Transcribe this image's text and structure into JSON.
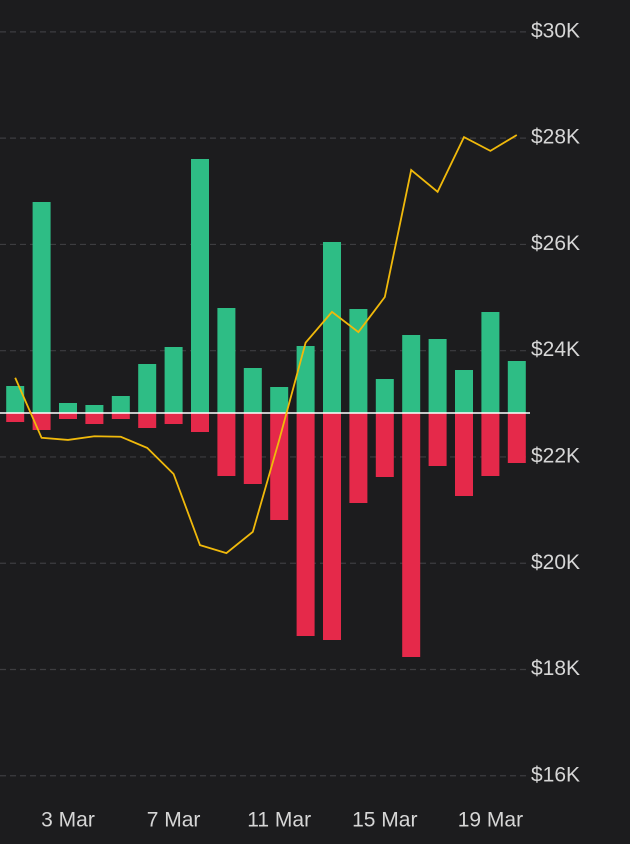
{
  "chart_data": {
    "type": "combo",
    "categories": [
      null,
      null,
      "3 Mar",
      null,
      null,
      null,
      "7 Mar",
      null,
      null,
      null,
      "11 Mar",
      null,
      null,
      null,
      "15 Mar",
      null,
      null,
      null,
      "19 Mar",
      null
    ],
    "series": [
      {
        "type": "bar",
        "axis": "y2",
        "color": "#2ebd85",
        "values": [
          27,
          211,
          10,
          8,
          17,
          49,
          66,
          254,
          105,
          45,
          26,
          67,
          171,
          104,
          34,
          78,
          74,
          43,
          101,
          52
        ]
      },
      {
        "type": "bar",
        "axis": "y2",
        "color": "#e5294a",
        "values": [
          -9,
          -17,
          -6,
          -11,
          -6,
          -15,
          -11,
          -19,
          -63,
          -71,
          -107,
          -223,
          -227,
          -90,
          -64,
          -244,
          -53,
          -83,
          -63,
          -50
        ]
      },
      {
        "type": "line",
        "color": "#f0b90b",
        "values": [
          23490,
          22360,
          22320,
          22390,
          22380,
          22170,
          21680,
          20340,
          20190,
          20590,
          22320,
          24150,
          24730,
          24350,
          25010,
          27400,
          26990,
          28020,
          27760,
          28060
        ]
      }
    ],
    "ylim": [
      15600,
      30600
    ],
    "yticks": [
      {
        "value": 16000,
        "label": "$16K"
      },
      {
        "value": 18000,
        "label": "$18K"
      },
      {
        "value": 20000,
        "label": "$20K"
      },
      {
        "value": 22000,
        "label": "$22K"
      },
      {
        "value": 24000,
        "label": "$24K"
      },
      {
        "value": 26000,
        "label": "$26K"
      },
      {
        "value": 28000,
        "label": "$28K"
      },
      {
        "value": 30000,
        "label": "$30K"
      }
    ],
    "y2lim": [
      -384,
      413
    ],
    "grid": true
  }
}
